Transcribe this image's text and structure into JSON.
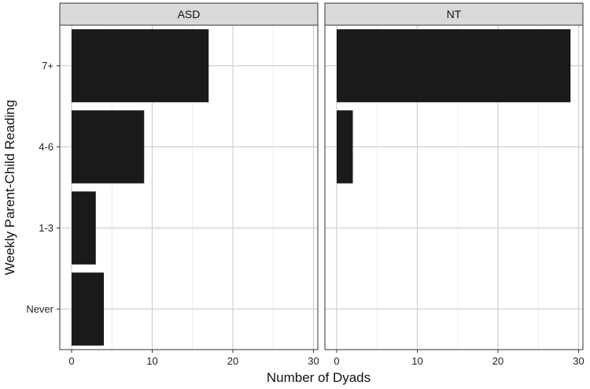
{
  "chart_data": {
    "type": "bar",
    "orientation": "horizontal",
    "facets": [
      "ASD",
      "NT"
    ],
    "categories": [
      "Never",
      "1-3",
      "4-6",
      "7+"
    ],
    "series": [
      {
        "facet": "ASD",
        "values": [
          4,
          3,
          9,
          17
        ]
      },
      {
        "facet": "NT",
        "values": [
          0,
          0,
          2,
          29
        ]
      }
    ],
    "xlabel": "Number of Dyads",
    "ylabel": "Weekly Parent-Child Reading",
    "xlim": [
      0,
      30
    ],
    "xticks": [
      0,
      10,
      20,
      30
    ],
    "grid": true,
    "bar_color": "#1a1a1a"
  }
}
